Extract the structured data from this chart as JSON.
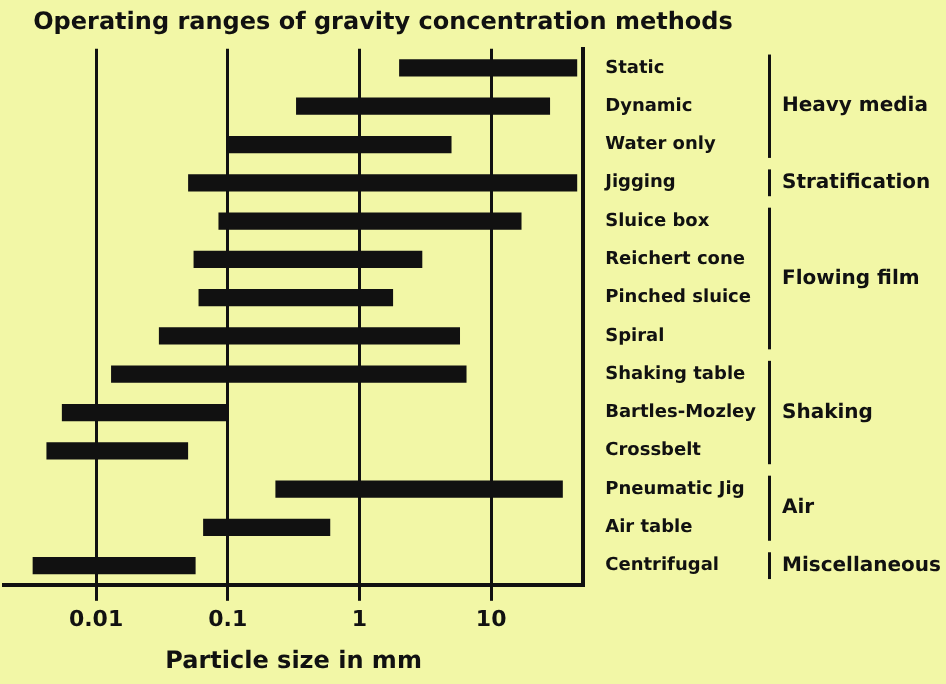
{
  "chart_data": {
    "type": "bar",
    "orientation": "horizontal",
    "title": "Operating ranges of gravity concentration methods",
    "xlabel": "Particle size in mm",
    "categories": [
      "Static",
      "Dynamic",
      "Water only",
      "Jigging",
      "Sluice box",
      "Reichert cone",
      "Pinched sluice",
      "Spiral",
      "Shaking table",
      "Bartles-Mozley",
      "Crossbelt",
      "Pneumatic Jig",
      "Air table",
      "Centrifugal"
    ],
    "base": [
      2,
      0.33,
      0.1,
      0.05,
      0.085,
      0.055,
      0.06,
      0.03,
      0.013,
      0.0055,
      0.0042,
      0.23,
      0.065,
      0.0033
    ],
    "values": [
      43,
      27.67,
      4.9,
      44.95,
      16.915,
      2.945,
      1.74,
      5.77,
      6.487,
      0.0945,
      0.0458,
      34.77,
      0.535,
      0.0537
    ],
    "color": "#111111",
    "log": "x",
    "xlim": [
      0.002,
      50
    ],
    "xticks": [
      0.01,
      0.1,
      1,
      10
    ],
    "grid": "x",
    "annotations": [
      "Heavy media",
      "Stratification",
      "Flowing film",
      "Shaking",
      "Air",
      "Miscellaneous"
    ]
  }
}
